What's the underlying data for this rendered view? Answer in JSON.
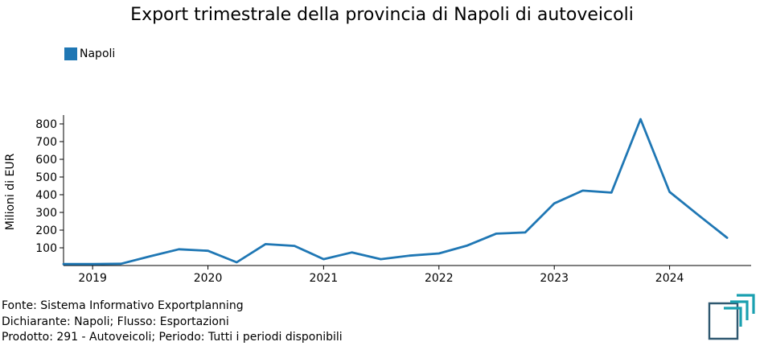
{
  "chart_data": {
    "type": "line",
    "title": "Export trimestrale della provincia di Napoli di autoveicoli",
    "ylabel": "Milioni di EUR",
    "xlabel": "",
    "ylim": [
      0,
      850
    ],
    "yticks": [
      100,
      200,
      300,
      400,
      500,
      600,
      700,
      800
    ],
    "xtick_labels": [
      "2019",
      "2020",
      "2021",
      "2022",
      "2023",
      "2024"
    ],
    "grid": false,
    "legend_position": "top-left",
    "series": [
      {
        "name": "Napoli",
        "color": "#1f77b4",
        "x": [
          "2018-10-01",
          "2019-01-01",
          "2019-04-01",
          "2019-07-01",
          "2019-10-01",
          "2020-01-01",
          "2020-04-01",
          "2020-07-01",
          "2020-10-01",
          "2021-01-01",
          "2021-04-01",
          "2021-07-01",
          "2021-10-01",
          "2022-01-01",
          "2022-04-01",
          "2022-07-01",
          "2022-10-01",
          "2023-01-01",
          "2023-04-01",
          "2023-07-01",
          "2023-10-01",
          "2024-01-01",
          "2024-04-01",
          "2024-07-01"
        ],
        "values": [
          8,
          8,
          10,
          52,
          92,
          83,
          18,
          121,
          111,
          36,
          74,
          36,
          56,
          68,
          113,
          180,
          187,
          351,
          423,
          412,
          827,
          416,
          285,
          157
        ]
      }
    ]
  },
  "footer": {
    "line1": "Fonte: Sistema Informativo Exportplanning",
    "line2": "Dichiarante: Napoli; Flusso: Esportazioni",
    "line3": "Prodotto: 291 - Autoveicoli; Periodo: Tutti i periodi disponibili"
  }
}
